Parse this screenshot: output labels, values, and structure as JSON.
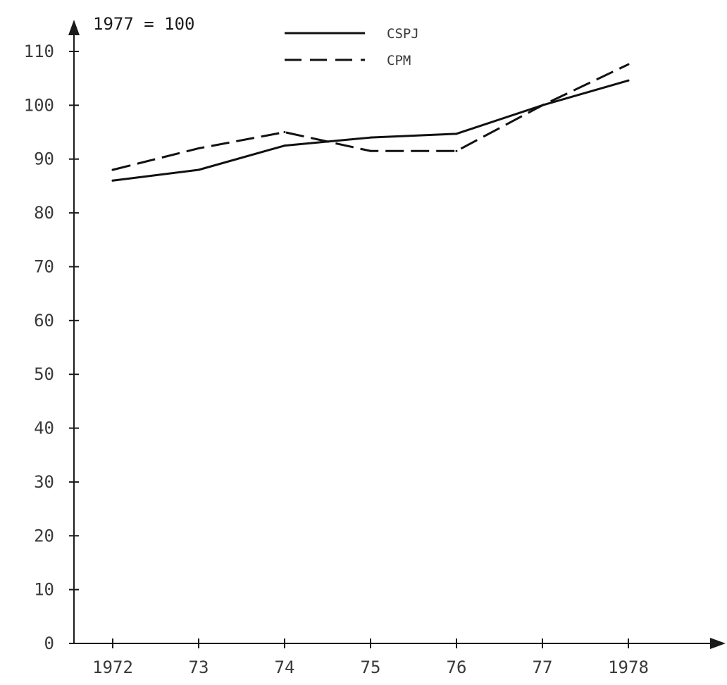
{
  "chart_data": {
    "type": "line",
    "title": "",
    "base_note": "1977 = 100",
    "xlabel": "",
    "ylabel": "",
    "categories": [
      "1972",
      "73",
      "74",
      "75",
      "76",
      "77",
      "1978"
    ],
    "ylim": [
      0,
      110
    ],
    "y_ticks": [
      0,
      10,
      20,
      30,
      40,
      50,
      60,
      70,
      80,
      90,
      100,
      110
    ],
    "grid": false,
    "legend": "top-center",
    "series": [
      {
        "name": "CSPJ",
        "style": "solid",
        "values": [
          86,
          88,
          92.5,
          94,
          94.7,
          100,
          104.6
        ]
      },
      {
        "name": "CPM",
        "style": "dashed",
        "values": [
          88,
          92,
          95,
          91.5,
          91.5,
          100,
          107.6
        ]
      }
    ],
    "line_color": "#111111"
  }
}
